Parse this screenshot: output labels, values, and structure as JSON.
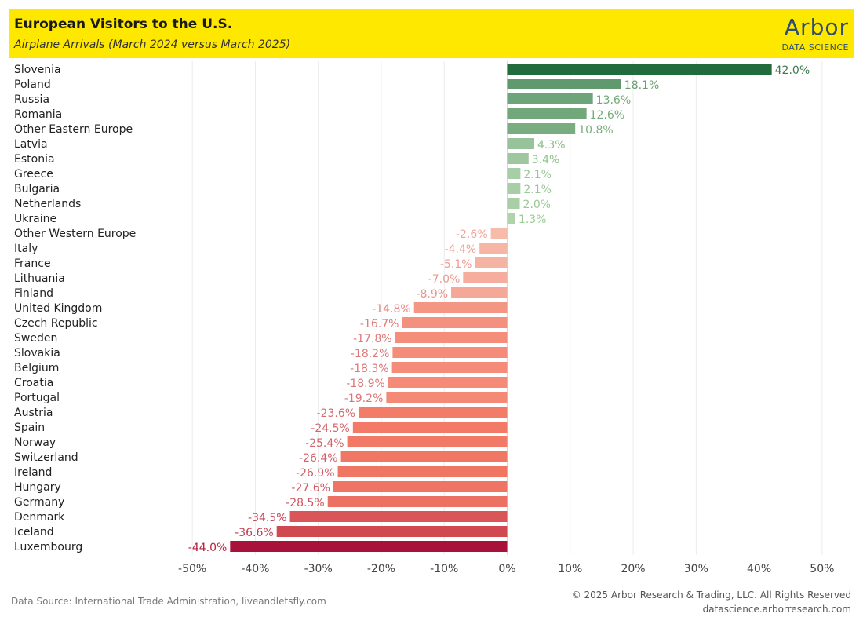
{
  "header": {
    "title": "European Visitors to the U.S.",
    "subtitle": "Airplane Arrivals (March 2024 versus March 2025)"
  },
  "logo": {
    "word": "Arbor",
    "sub": "DATA SCIENCE"
  },
  "footer": {
    "source": "Data Source: International Trade Administration, liveandletsfly.com",
    "copyright": "© 2025 Arbor Research & Trading, LLC. All Rights Reserved",
    "website": "datascience.arborresearch.com"
  },
  "chart_data": {
    "type": "bar",
    "orientation": "horizontal",
    "categories": [
      "Slovenia",
      "Poland",
      "Russia",
      "Romania",
      "Other Eastern Europe",
      "Latvia",
      "Estonia",
      "Greece",
      "Bulgaria",
      "Netherlands",
      "Ukraine",
      "Other Western Europe",
      "Italy",
      "France",
      "Lithuania",
      "Finland",
      "United Kingdom",
      "Czech Republic",
      "Sweden",
      "Slovakia",
      "Belgium",
      "Croatia",
      "Portugal",
      "Austria",
      "Spain",
      "Norway",
      "Switzerland",
      "Ireland",
      "Hungary",
      "Germany",
      "Denmark",
      "Iceland",
      "Luxembourg"
    ],
    "values": [
      42.0,
      18.1,
      13.6,
      12.6,
      10.8,
      4.3,
      3.4,
      2.1,
      2.1,
      2.0,
      1.3,
      -2.6,
      -4.4,
      -5.1,
      -7.0,
      -8.9,
      -14.8,
      -16.7,
      -17.8,
      -18.2,
      -18.3,
      -18.9,
      -19.2,
      -23.6,
      -24.5,
      -25.4,
      -26.4,
      -26.9,
      -27.6,
      -28.5,
      -34.5,
      -36.6,
      -44.0
    ],
    "value_labels": [
      "42.0%",
      "18.1%",
      "13.6%",
      "12.6%",
      "10.8%",
      "4.3%",
      "3.4%",
      "2.1%",
      "2.1%",
      "2.0%",
      "1.3%",
      "-2.6%",
      "-4.4%",
      "-5.1%",
      "-7.0%",
      "-8.9%",
      "-14.8%",
      "-16.7%",
      "-17.8%",
      "-18.2%",
      "-18.3%",
      "-18.9%",
      "-19.2%",
      "-23.6%",
      "-24.5%",
      "-25.4%",
      "-26.4%",
      "-26.9%",
      "-27.6%",
      "-28.5%",
      "-34.5%",
      "-36.6%",
      "-44.0%"
    ],
    "xlim": [
      -55,
      55
    ],
    "ticks": [
      -50,
      -40,
      -30,
      -20,
      -10,
      0,
      10,
      20,
      30,
      40,
      50
    ],
    "tick_labels": [
      "-50%",
      "-40%",
      "-30%",
      "-20%",
      "-10%",
      "0%",
      "10%",
      "20%",
      "30%",
      "40%",
      "50%"
    ],
    "grid": true,
    "colors": {
      "positive_strong": "#216b3c",
      "positive_light": "#c8e6c0",
      "negative_light": "#f6c3b3",
      "negative_mid": "#f37a66",
      "negative_strong": "#a8123a",
      "grid": "#ebebeb"
    }
  }
}
